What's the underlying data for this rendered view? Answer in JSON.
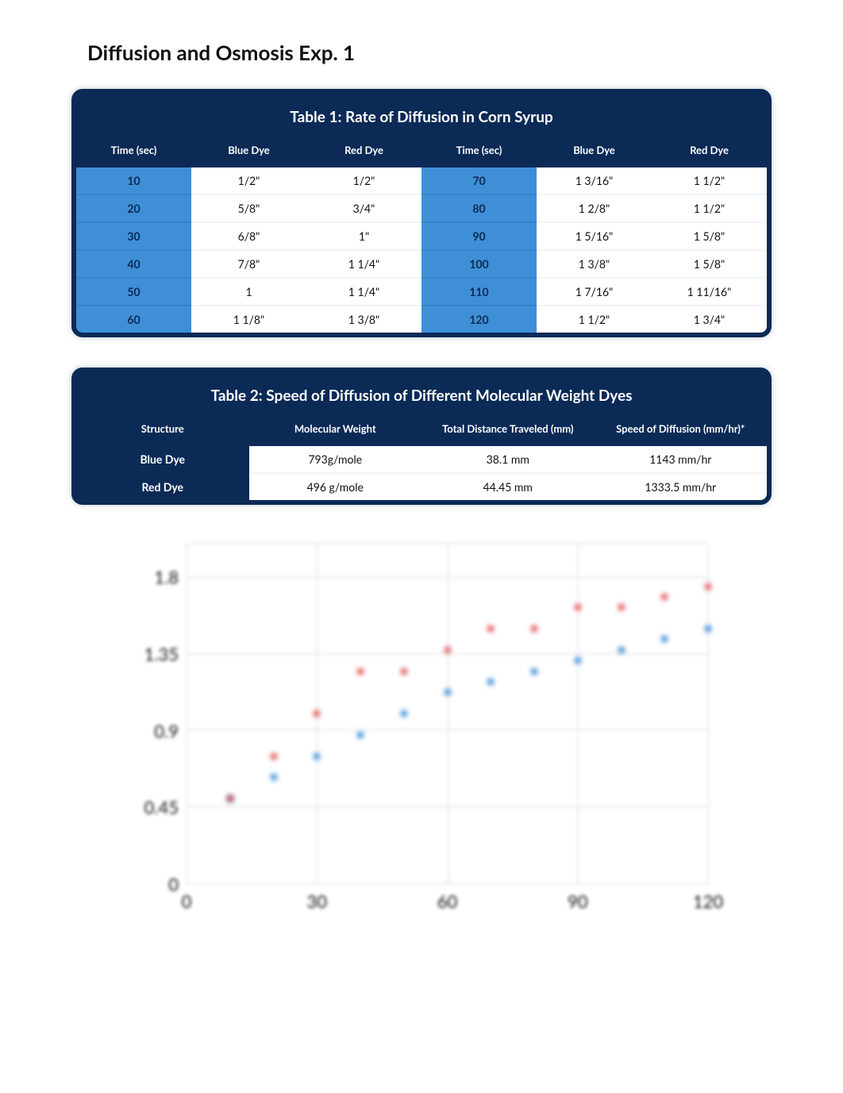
{
  "title": "Diffusion and Osmosis Exp. 1",
  "colors": {
    "header_bg": "#0b2a56",
    "time_bg": "#3f8fd6",
    "time_fg": "#0b2a56",
    "grid": "#d6d9de",
    "blue_marker": "#3f8fd6",
    "red_marker": "#e05a5a",
    "text": "#111111",
    "white": "#ffffff"
  },
  "table1": {
    "title": "Table 1: Rate of Diffusion in Corn Syrup",
    "headers": [
      "Time (sec)",
      "Blue Dye",
      "Red Dye",
      "Time (sec)",
      "Blue Dye",
      "Red Dye"
    ],
    "rows": [
      [
        "10",
        "1/2\"",
        "1/2\"",
        "70",
        "1  3/16\"",
        "1  1/2\""
      ],
      [
        "20",
        "5/8\"",
        "3/4\"",
        "80",
        "1  2/8\"",
        "1  1/2\""
      ],
      [
        "30",
        "6/8\"",
        "1\"",
        "90",
        "1  5/16\"",
        "1  5/8\""
      ],
      [
        "40",
        "7/8\"",
        "1  1/4\"",
        "100",
        "1  3/8\"",
        "1  5/8\""
      ],
      [
        "50",
        "1",
        "1  1/4\"",
        "110",
        "1  7/16\"",
        "1  11/16\""
      ],
      [
        "60",
        "1  1/8\"",
        "1  3/8\"",
        "120",
        "1  1/2\"",
        "1  3/4\""
      ]
    ]
  },
  "table2": {
    "title": "Table 2: Speed of Diffusion of Different Molecular Weight Dyes",
    "headers": [
      "Structure",
      "Molecular Weight",
      "Total Distance Traveled (mm)",
      "Speed of Diffusion (mm/hr)*"
    ],
    "rows": [
      [
        "Blue Dye",
        "793g/mole",
        "38.1 mm",
        "1143 mm/hr"
      ],
      [
        "Red Dye",
        "496 g/mole",
        "44.45 mm",
        "1333.5 mm/hr"
      ]
    ]
  },
  "chart": {
    "type": "scatter",
    "xlim": [
      0,
      120
    ],
    "x_ticks": [
      0,
      30,
      60,
      90,
      120
    ],
    "ylim": [
      0,
      2.0
    ],
    "y_ticks": [
      0,
      0.45,
      0.9,
      1.35,
      1.8
    ],
    "label_fontsize": 22,
    "background_color": "#ffffff",
    "grid_color": "#d6d9de",
    "marker_size": 8,
    "series": [
      {
        "name": "Blue Dye",
        "color": "#3f8fd6",
        "x": [
          10,
          20,
          30,
          40,
          50,
          60,
          70,
          80,
          90,
          100,
          110,
          120
        ],
        "y": [
          0.5,
          0.625,
          0.75,
          0.875,
          1.0,
          1.125,
          1.1875,
          1.25,
          1.3125,
          1.375,
          1.4375,
          1.5
        ]
      },
      {
        "name": "Red Dye",
        "color": "#e05a5a",
        "x": [
          10,
          20,
          30,
          40,
          50,
          60,
          70,
          80,
          90,
          100,
          110,
          120
        ],
        "y": [
          0.5,
          0.75,
          1.0,
          1.25,
          1.25,
          1.375,
          1.5,
          1.5,
          1.625,
          1.625,
          1.6875,
          1.75
        ]
      }
    ],
    "blurred": true
  }
}
